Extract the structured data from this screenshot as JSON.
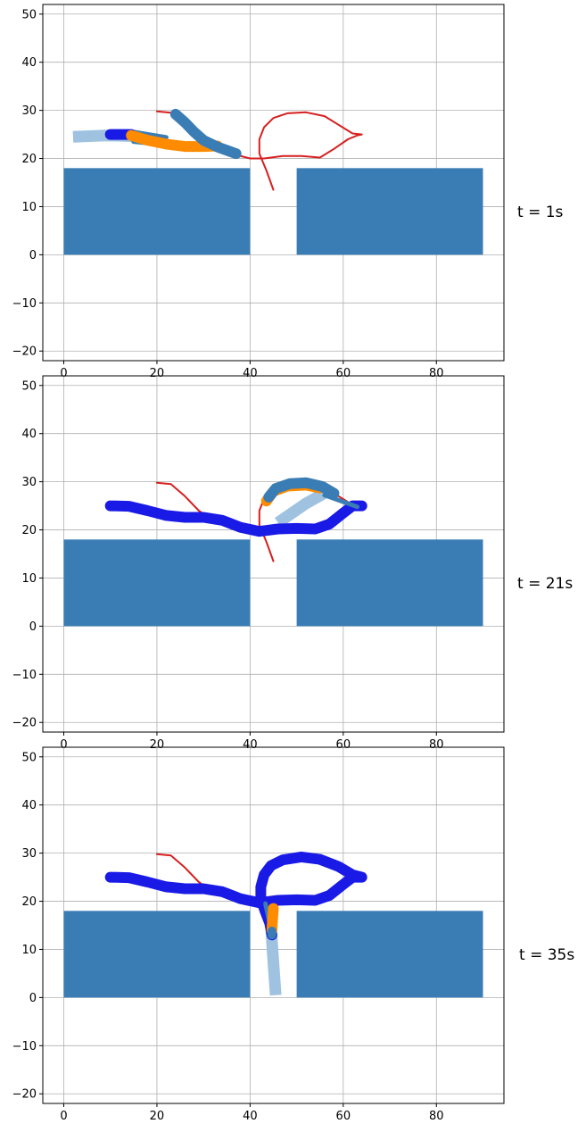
{
  "chart_data": [
    {
      "type": "line",
      "annotation": "t = 1s",
      "xlim": [
        -4.5,
        94.5
      ],
      "ylim": [
        -22,
        52
      ],
      "xticks": [
        0,
        20,
        40,
        60,
        80
      ],
      "yticks": [
        -20,
        -10,
        0,
        10,
        20,
        30,
        40,
        50
      ],
      "grid": true,
      "obstacles": [
        {
          "x": 0,
          "y": 0,
          "width": 40,
          "height": 18,
          "color": "#3a7db5"
        },
        {
          "x": 50,
          "y": 0,
          "width": 40,
          "height": 18,
          "color": "#3a7db5"
        }
      ],
      "series": [
        {
          "role": "reference-path",
          "color": "#d62020",
          "width": 2,
          "points": [
            [
              20,
              29.8
            ],
            [
              23,
              29.5
            ],
            [
              26,
              27
            ],
            [
              29,
              24
            ],
            [
              32,
              22
            ],
            [
              36,
              21
            ],
            [
              40,
              20
            ],
            [
              43,
              20
            ],
            [
              47,
              20.5
            ],
            [
              51,
              20.5
            ],
            [
              55,
              20.2
            ],
            [
              58,
              22
            ],
            [
              61,
              24
            ],
            [
              63,
              24.8
            ],
            [
              64,
              25
            ],
            [
              62,
              25.2
            ],
            [
              59,
              27
            ],
            [
              56,
              28.8
            ],
            [
              52,
              29.6
            ],
            [
              48,
              29.4
            ],
            [
              45,
              28.4
            ],
            [
              43,
              26.5
            ],
            [
              42,
              24
            ],
            [
              42,
              21
            ],
            [
              43.5,
              17.5
            ],
            [
              45,
              13.5
            ]
          ]
        },
        {
          "role": "light-trail",
          "color": "#9fc2e0",
          "width": 13,
          "points": [
            [
              2,
              24.5
            ],
            [
              9,
              24.8
            ],
            [
              16,
              24.6
            ]
          ]
        },
        {
          "role": "dark-segment",
          "color": "#3a7db5",
          "width": 5,
          "points": [
            [
              15,
              23.5
            ],
            [
              22,
              22.8
            ]
          ]
        },
        {
          "role": "dark-segment",
          "color": "#3a7db5",
          "width": 5,
          "points": [
            [
              15,
              25.5
            ],
            [
              22,
              24.4
            ]
          ]
        },
        {
          "role": "blue-trail",
          "color": "#1a1ae6",
          "width": 12,
          "points": [
            [
              10,
              25
            ],
            [
              14.5,
              25
            ]
          ]
        },
        {
          "role": "orange-trail",
          "color": "#ff8c00",
          "width": 12,
          "points": [
            [
              14.5,
              24.8
            ],
            [
              18,
              23.8
            ],
            [
              22,
              23
            ],
            [
              26,
              22.5
            ],
            [
              30,
              22.5
            ],
            [
              33,
              22.6
            ]
          ]
        },
        {
          "role": "dark-body",
          "color": "#3a7db5",
          "width": 12,
          "points": [
            [
              24,
              29.2
            ],
            [
              26,
              27.5
            ],
            [
              28,
              25.5
            ],
            [
              30,
              23.8
            ],
            [
              33,
              22.4
            ],
            [
              37,
              21
            ]
          ]
        }
      ]
    },
    {
      "type": "line",
      "annotation": "t = 21s",
      "xlim": [
        -4.5,
        94.5
      ],
      "ylim": [
        -22,
        52
      ],
      "xticks": [
        0,
        20,
        40,
        60,
        80
      ],
      "yticks": [
        -20,
        -10,
        0,
        10,
        20,
        30,
        40,
        50
      ],
      "grid": true,
      "obstacles": [
        {
          "x": 0,
          "y": 0,
          "width": 40,
          "height": 18,
          "color": "#3a7db5"
        },
        {
          "x": 50,
          "y": 0,
          "width": 40,
          "height": 18,
          "color": "#3a7db5"
        }
      ],
      "series": [
        {
          "role": "reference-path",
          "color": "#d62020",
          "width": 2,
          "points": [
            [
              20,
              29.8
            ],
            [
              23,
              29.5
            ],
            [
              26,
              27
            ],
            [
              29,
              24
            ],
            [
              32,
              22
            ],
            [
              36,
              21
            ],
            [
              40,
              20
            ],
            [
              43,
              20
            ],
            [
              47,
              20.5
            ],
            [
              51,
              20.5
            ],
            [
              55,
              20.2
            ],
            [
              58,
              22
            ],
            [
              61,
              24
            ],
            [
              63,
              24.8
            ],
            [
              64,
              25
            ],
            [
              62,
              25.2
            ],
            [
              59,
              27
            ],
            [
              56,
              28.8
            ],
            [
              52,
              29.6
            ],
            [
              48,
              29.4
            ],
            [
              45,
              28.4
            ],
            [
              43,
              26.5
            ],
            [
              42,
              24
            ],
            [
              42,
              21
            ],
            [
              43.5,
              17.5
            ],
            [
              45,
              13.5
            ]
          ]
        },
        {
          "role": "light-trail",
          "color": "#9fc2e0",
          "width": 13,
          "points": [
            [
              46,
              21.5
            ],
            [
              52,
              25.5
            ],
            [
              57,
              28.2
            ]
          ]
        },
        {
          "role": "blue-trail",
          "color": "#1a1ae6",
          "width": 12,
          "points": [
            [
              10,
              25
            ],
            [
              14,
              24.9
            ],
            [
              18,
              24
            ],
            [
              22,
              23
            ],
            [
              26,
              22.6
            ],
            [
              30,
              22.6
            ],
            [
              34,
              22
            ],
            [
              38,
              20.5
            ],
            [
              42,
              19.7
            ],
            [
              46,
              20.2
            ],
            [
              50,
              20.3
            ],
            [
              54,
              20.2
            ],
            [
              57,
              21.2
            ],
            [
              60,
              23.5
            ],
            [
              62,
              25
            ],
            [
              64,
              25
            ]
          ]
        },
        {
          "role": "dark-segment",
          "color": "#3a7db5",
          "width": 5,
          "points": [
            [
              56,
              27.2
            ],
            [
              63,
              24.8
            ]
          ]
        },
        {
          "role": "orange-trail",
          "color": "#ff8c00",
          "width": 12,
          "points": [
            [
              43.5,
              26
            ],
            [
              45,
              28
            ],
            [
              48,
              29.1
            ],
            [
              52,
              29.3
            ],
            [
              55,
              28.7
            ]
          ]
        },
        {
          "role": "dark-body",
          "color": "#3a7db5",
          "width": 12,
          "points": [
            [
              44,
              26.8
            ],
            [
              45.5,
              28.6
            ],
            [
              48.5,
              29.6
            ],
            [
              52,
              29.8
            ],
            [
              55.5,
              29
            ],
            [
              58,
              27.6
            ]
          ]
        }
      ]
    },
    {
      "type": "line",
      "annotation": "t = 35s",
      "xlim": [
        -4.5,
        94.5
      ],
      "ylim": [
        -22,
        52
      ],
      "xticks": [
        0,
        20,
        40,
        60,
        80
      ],
      "yticks": [
        -20,
        -10,
        0,
        10,
        20,
        30,
        40,
        50
      ],
      "grid": true,
      "obstacles": [
        {
          "x": 0,
          "y": 0,
          "width": 40,
          "height": 18,
          "color": "#3a7db5"
        },
        {
          "x": 50,
          "y": 0,
          "width": 40,
          "height": 18,
          "color": "#3a7db5"
        }
      ],
      "series": [
        {
          "role": "reference-path",
          "color": "#d62020",
          "width": 2,
          "points": [
            [
              20,
              29.8
            ],
            [
              23,
              29.5
            ],
            [
              26,
              27
            ],
            [
              29,
              24
            ],
            [
              32,
              22
            ],
            [
              36,
              21
            ],
            [
              40,
              20
            ],
            [
              43,
              20
            ]
          ]
        },
        {
          "role": "light-trail",
          "color": "#9fc2e0",
          "width": 13,
          "points": [
            [
              45.5,
              0.5
            ],
            [
              44.8,
              10
            ],
            [
              44.3,
              18
            ]
          ]
        },
        {
          "role": "blue-trail",
          "color": "#1a1ae6",
          "width": 12,
          "points": [
            [
              10,
              25
            ],
            [
              14,
              24.9
            ],
            [
              18,
              24
            ],
            [
              22,
              23
            ],
            [
              26,
              22.6
            ],
            [
              30,
              22.6
            ],
            [
              34,
              22
            ],
            [
              38,
              20.5
            ],
            [
              42,
              19.7
            ],
            [
              46,
              20.2
            ],
            [
              50,
              20.3
            ],
            [
              54,
              20.2
            ],
            [
              57,
              21.2
            ],
            [
              60,
              23.5
            ],
            [
              62,
              25
            ],
            [
              64,
              25
            ],
            [
              62,
              25.5
            ],
            [
              59,
              27.2
            ],
            [
              55,
              28.7
            ],
            [
              51,
              29.2
            ],
            [
              47,
              28.6
            ],
            [
              44.5,
              27.4
            ],
            [
              43,
              25.5
            ],
            [
              42.3,
              23
            ],
            [
              42.3,
              20.5
            ],
            [
              43.2,
              18
            ],
            [
              44.2,
              15.5
            ],
            [
              44.7,
              13
            ]
          ]
        },
        {
          "role": "dark-segment",
          "color": "#3a7db5",
          "width": 5,
          "points": [
            [
              43.3,
              19.5
            ],
            [
              44.2,
              15.5
            ]
          ]
        },
        {
          "role": "orange-trail",
          "color": "#ff8c00",
          "width": 12,
          "points": [
            [
              45,
              18.5
            ],
            [
              44.8,
              16
            ],
            [
              44.7,
              14
            ]
          ]
        },
        {
          "role": "dark-body",
          "color": "#3a7db5",
          "width": 10,
          "points": [
            [
              44.7,
              13.8
            ],
            [
              44.7,
              13
            ]
          ]
        }
      ]
    }
  ]
}
